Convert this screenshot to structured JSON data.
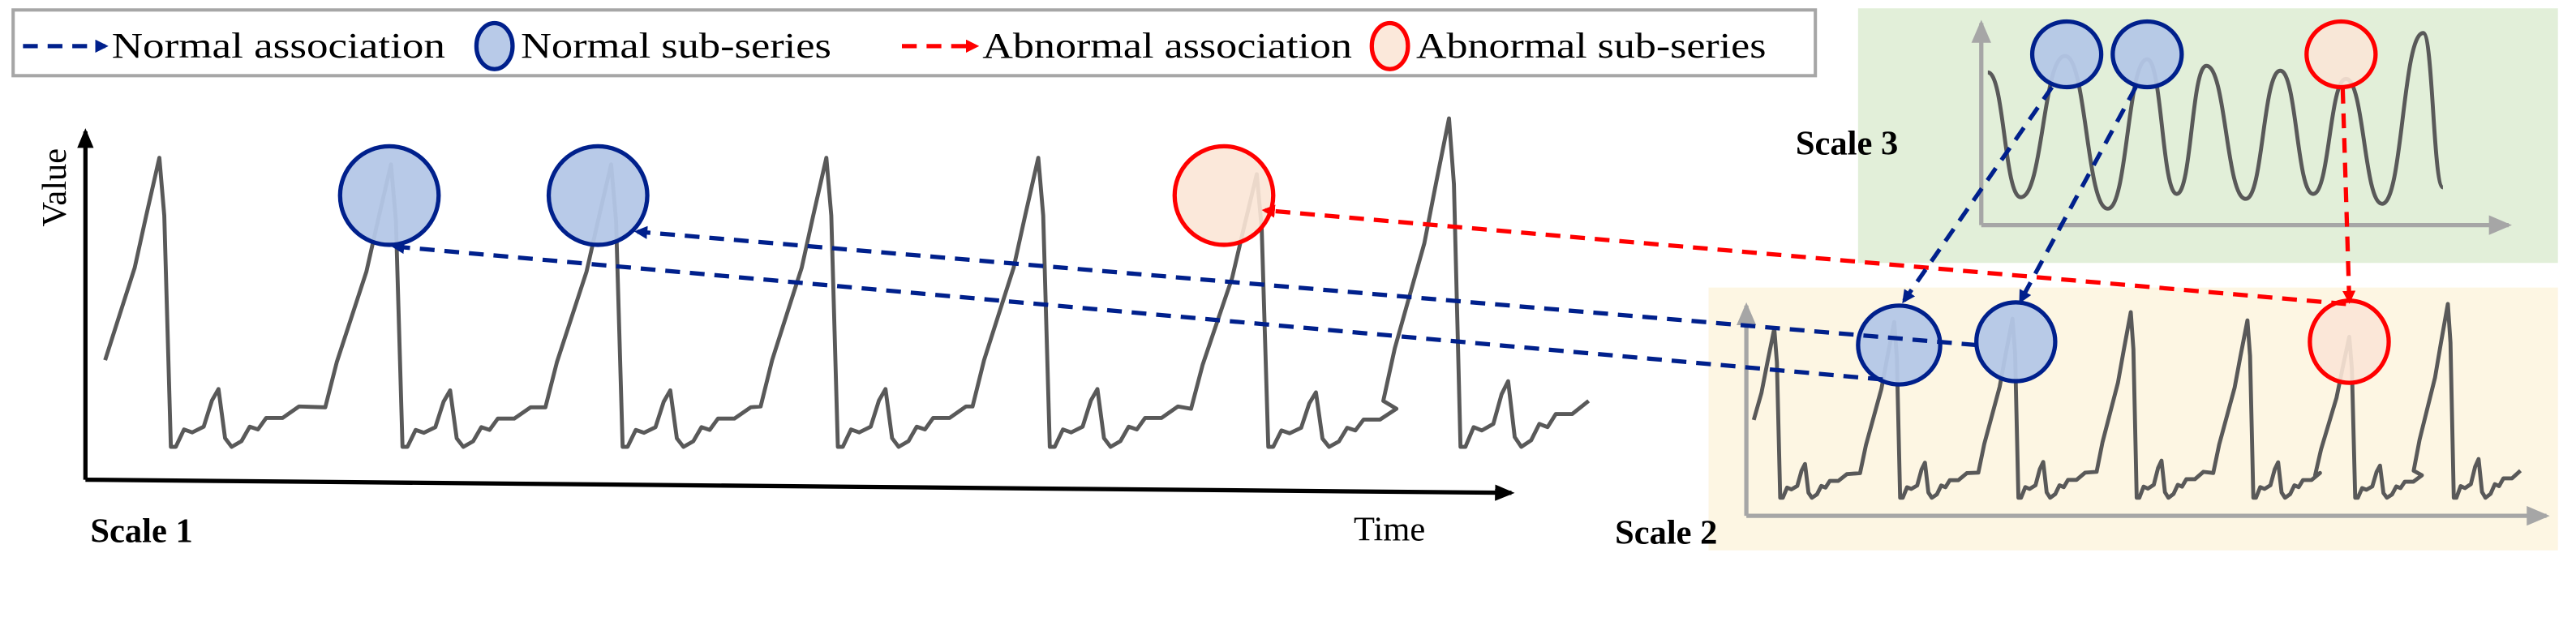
{
  "legend": {
    "normal_association": "Normal association",
    "normal_subseries": "Normal sub-series",
    "abnormal_association": "Abnormal association",
    "abnormal_subseries": "Abnormal sub-series"
  },
  "scale1": {
    "label": "Scale 1",
    "y_axis_label": "Value",
    "x_axis_label": "Time"
  },
  "scale2": {
    "label": "Scale 2"
  },
  "scale3": {
    "label": "Scale 3"
  },
  "colors": {
    "normal": "#00208c",
    "normal_fill": "#b4c7e7",
    "abnormal": "#ff0000",
    "abnormal_fill": "#fbe5d6",
    "scale2_bg": "#fdf6e3",
    "scale3_bg": "#e2efd9"
  }
}
